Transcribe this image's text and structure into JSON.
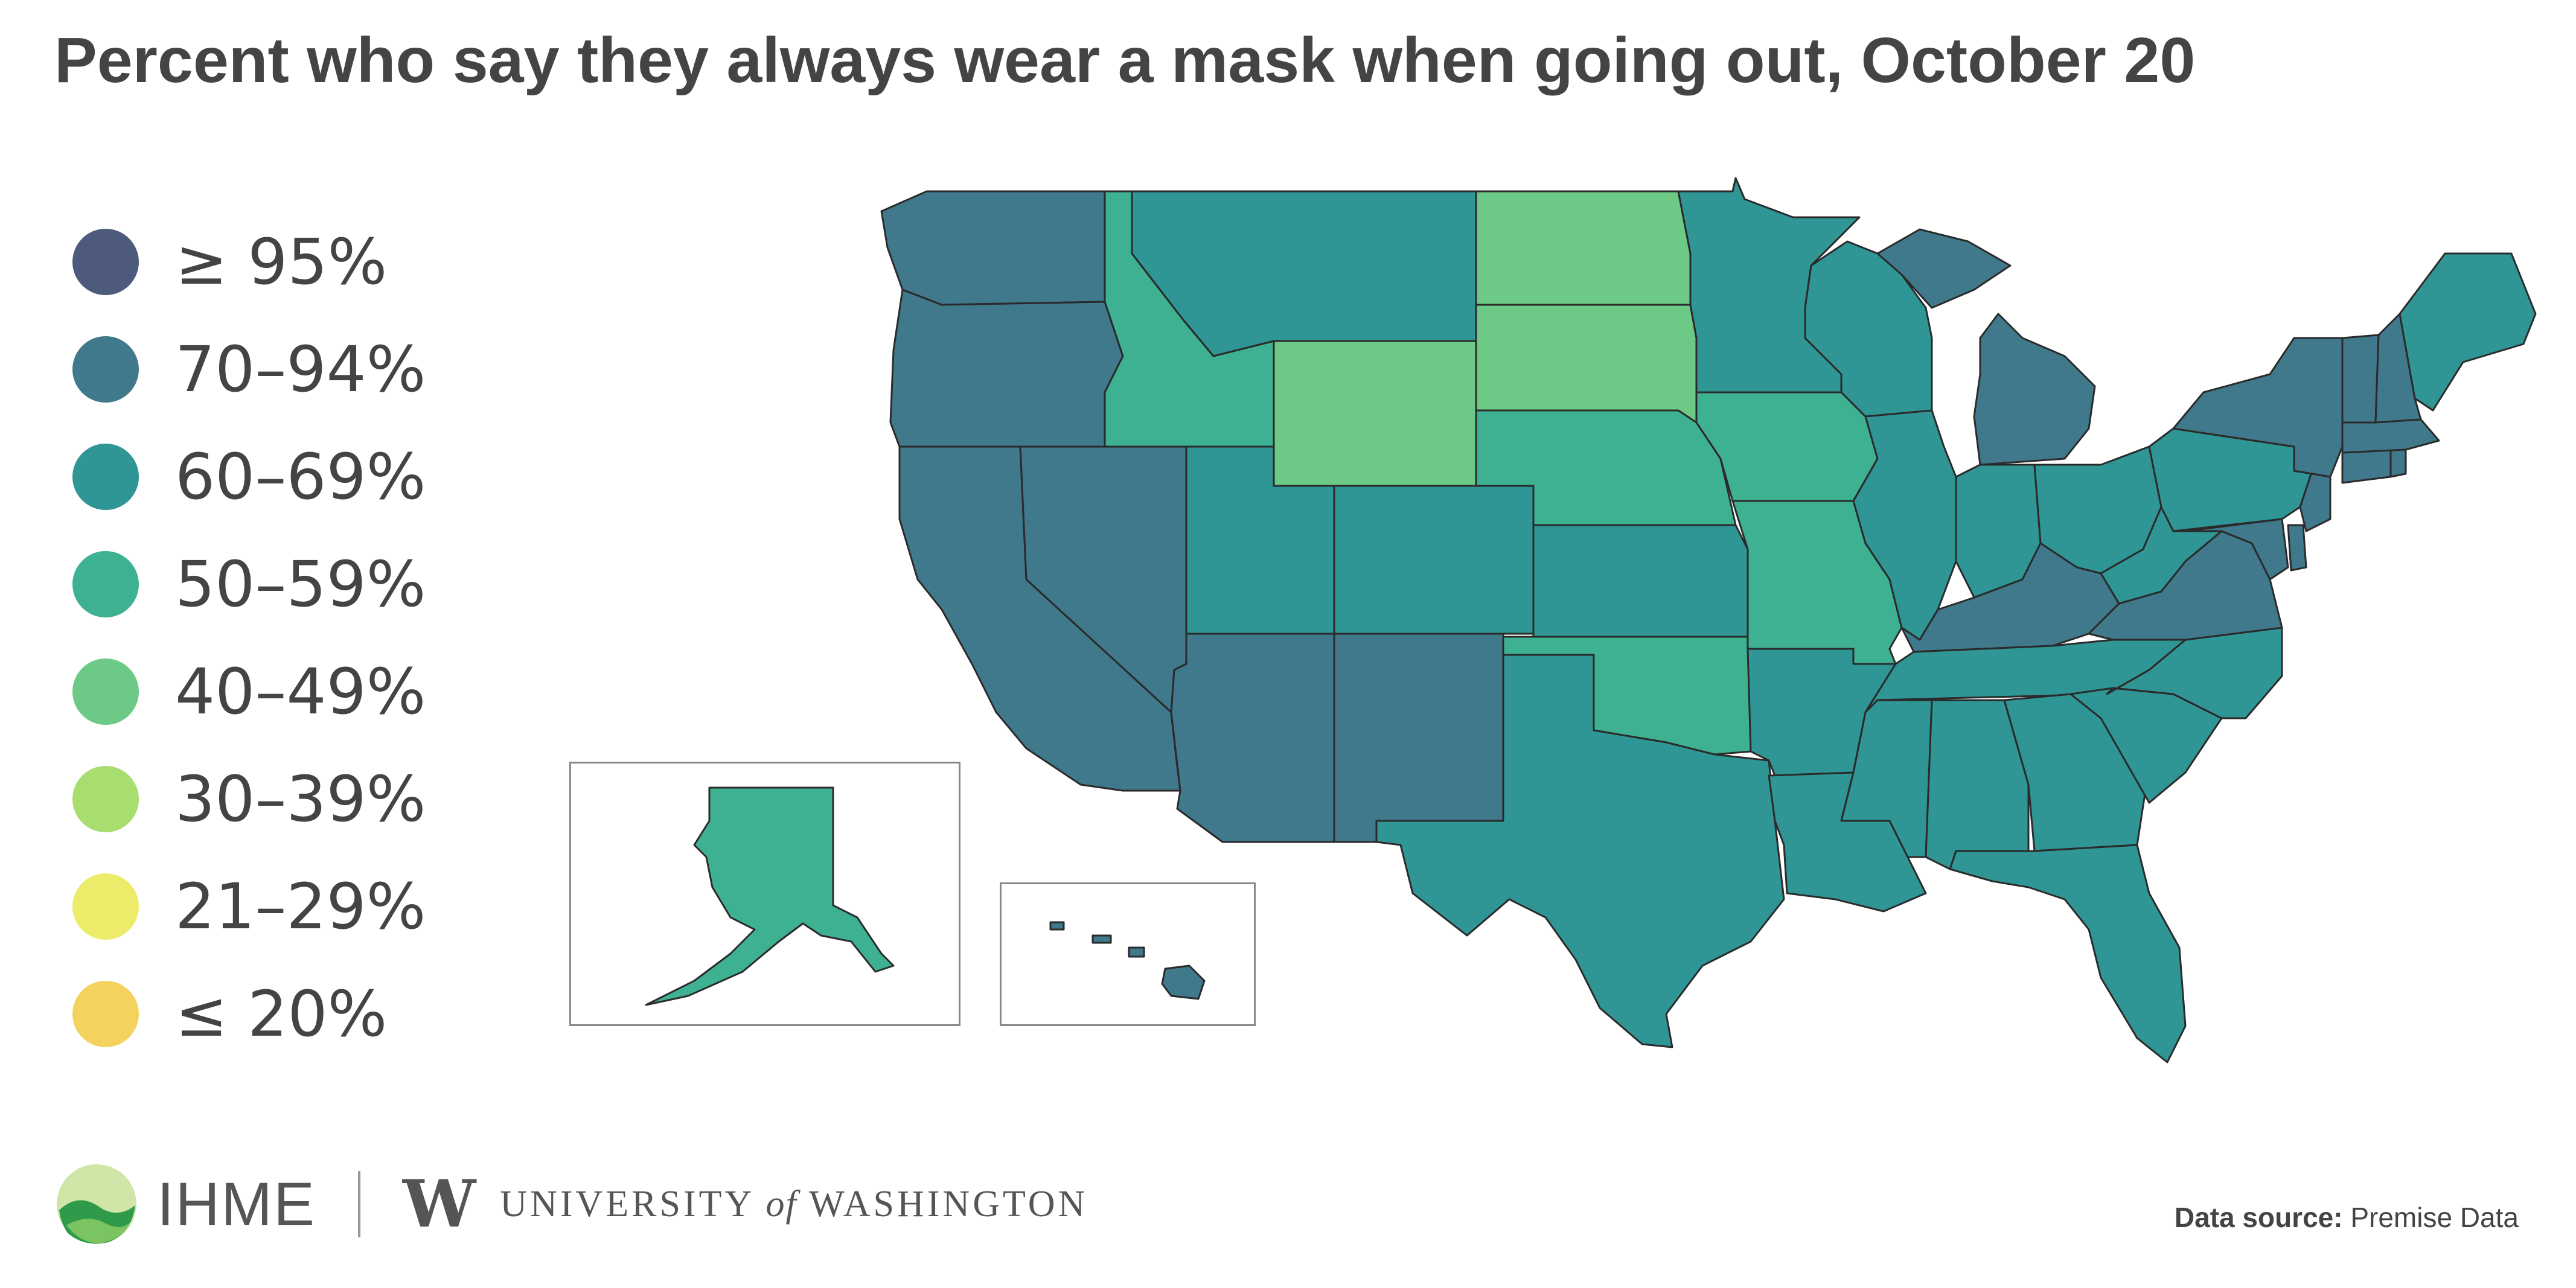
{
  "title": "Percent who say they always wear a mask when going out, October 20",
  "legend": [
    {
      "label": "≥ 95%",
      "color": "#4d5a7c"
    },
    {
      "label": "70–94%",
      "color": "#40788c"
    },
    {
      "label": "60–69%",
      "color": "#2f9595"
    },
    {
      "label": "50–59%",
      "color": "#3eb193"
    },
    {
      "label": "40–49%",
      "color": "#6cca86"
    },
    {
      "label": "30–39%",
      "color": "#a8dd70"
    },
    {
      "label": "21–29%",
      "color": "#ecec6a"
    },
    {
      "label": "≤ 20%",
      "color": "#f3d25e"
    }
  ],
  "footer": {
    "ihme": "IHME",
    "uw_w": "W",
    "uw_university": "UNIVERSITY",
    "uw_of": "of",
    "uw_washington": "WASHINGTON",
    "source_label": "Data source:",
    "source_value": "Premise Data"
  },
  "states": {
    "WA": "70–94%",
    "OR": "70–94%",
    "CA": "70–94%",
    "NV": "70–94%",
    "ID": "50–59%",
    "MT": "60–69%",
    "WY": "40–49%",
    "UT": "60–69%",
    "CO": "60–69%",
    "AZ": "70–94%",
    "NM": "70–94%",
    "ND": "40–49%",
    "SD": "40–49%",
    "NE": "50–59%",
    "KS": "60–69%",
    "OK": "50–59%",
    "TX": "60–69%",
    "MN": "60–69%",
    "IA": "50–59%",
    "MO": "50–59%",
    "AR": "60–69%",
    "LA": "60–69%",
    "WI": "60–69%",
    "IL": "60–69%",
    "MI": "70–94%",
    "IN": "60–69%",
    "OH": "60–69%",
    "KY": "70–94%",
    "TN": "60–69%",
    "MS": "60–69%",
    "AL": "60–69%",
    "GA": "60–69%",
    "FL": "60–69%",
    "SC": "60–69%",
    "NC": "60–69%",
    "VA": "70–94%",
    "WV": "60–69%",
    "PA": "60–69%",
    "NY": "70–94%",
    "VT": "70–94%",
    "NH": "70–94%",
    "ME": "60–69%",
    "MA": "70–94%",
    "CT": "70–94%",
    "RI": "70–94%",
    "NJ": "70–94%",
    "DE": "70–94%",
    "MD": "70–94%",
    "AK": "50–59%",
    "HI": "70–94%"
  }
}
